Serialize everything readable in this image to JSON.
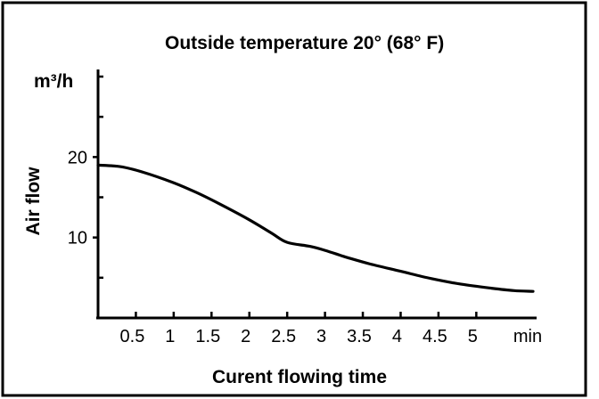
{
  "chart_data": {
    "type": "line",
    "title": "Outside temperature  20° (68° F)",
    "xlabel": "Curent flowing time",
    "ylabel": "Air flow",
    "y_unit": "m³/h",
    "x_unit": "min",
    "x_ticks": [
      0.5,
      1,
      1.5,
      2,
      2.5,
      3,
      3.5,
      4,
      4.5,
      5
    ],
    "x_tick_labels": [
      "0.5",
      "1",
      "1.5",
      "2",
      "2.5",
      "3",
      "3.5",
      "4",
      "4.5",
      "5"
    ],
    "y_ticks": [
      10,
      20
    ],
    "y_tick_labels": [
      "10",
      "20"
    ],
    "y_minor_ticks": [
      5,
      15,
      25,
      30
    ],
    "xlim": [
      0,
      5.75
    ],
    "ylim": [
      0,
      30
    ],
    "grid": false,
    "series": [
      {
        "values": [
          {
            "x": 0.0,
            "y": 19.0
          },
          {
            "x": 0.3,
            "y": 18.8
          },
          {
            "x": 0.6,
            "y": 18.1
          },
          {
            "x": 1.0,
            "y": 16.8
          },
          {
            "x": 1.3,
            "y": 15.6
          },
          {
            "x": 1.6,
            "y": 14.2
          },
          {
            "x": 2.0,
            "y": 12.2
          },
          {
            "x": 2.3,
            "y": 10.5
          },
          {
            "x": 2.5,
            "y": 9.4
          },
          {
            "x": 2.8,
            "y": 8.9
          },
          {
            "x": 3.0,
            "y": 8.4
          },
          {
            "x": 3.3,
            "y": 7.5
          },
          {
            "x": 3.6,
            "y": 6.7
          },
          {
            "x": 4.0,
            "y": 5.8
          },
          {
            "x": 4.4,
            "y": 4.9
          },
          {
            "x": 4.8,
            "y": 4.2
          },
          {
            "x": 5.2,
            "y": 3.7
          },
          {
            "x": 5.5,
            "y": 3.4
          },
          {
            "x": 5.75,
            "y": 3.3
          }
        ]
      }
    ]
  }
}
